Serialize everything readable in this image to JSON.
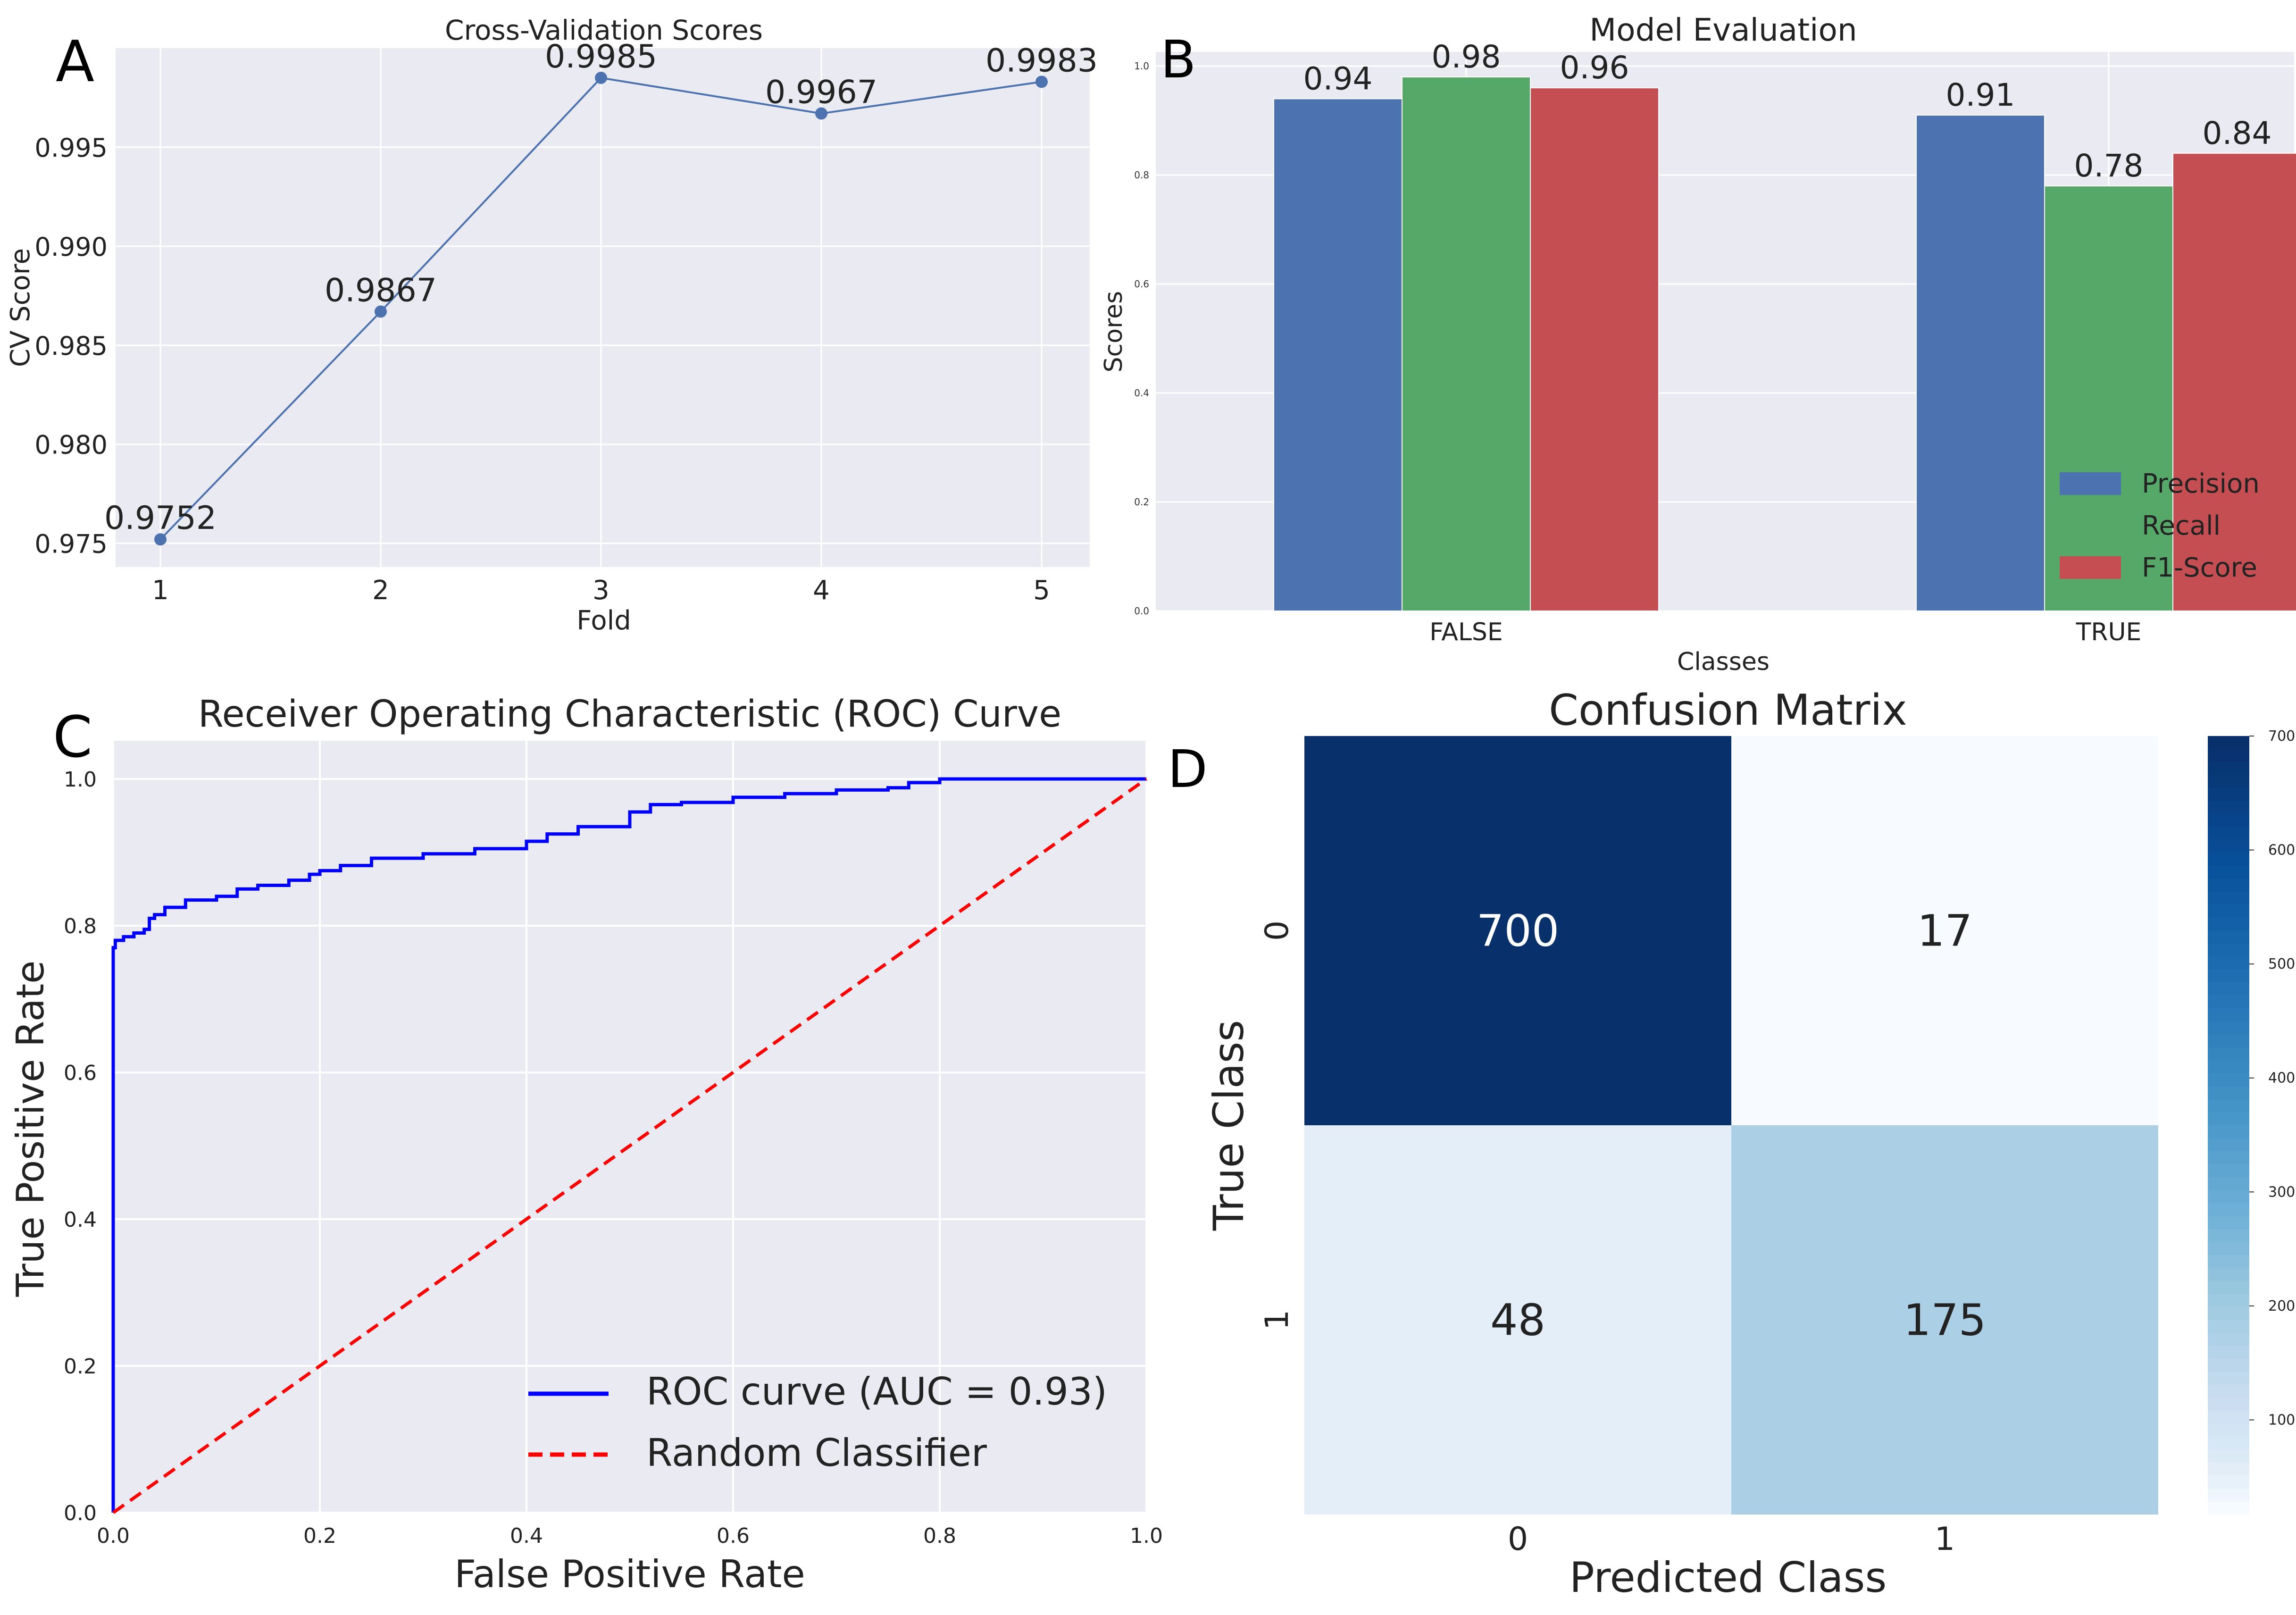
{
  "panels": {
    "a": "A",
    "b": "B",
    "c": "C",
    "d": "D"
  },
  "chart_data": [
    {
      "type": "line",
      "title": "Cross-Validation Scores",
      "xlabel": "Fold",
      "ylabel": "CV Score",
      "x": [
        1,
        2,
        3,
        4,
        5
      ],
      "values": [
        0.9752,
        0.9867,
        0.9985,
        0.9967,
        0.9983
      ],
      "labels": [
        "0.9752",
        "0.9867",
        "0.9985",
        "0.9967",
        "0.9983"
      ],
      "xticks": [
        "1",
        "2",
        "3",
        "4",
        "5"
      ],
      "yticks": [
        "0.975",
        "0.980",
        "0.985",
        "0.990",
        "0.995"
      ],
      "ylim": [
        0.9738,
        1.0
      ],
      "color": "#4c72b0",
      "grid": true
    },
    {
      "type": "bar",
      "title": "Model Evaluation",
      "xlabel": "Classes",
      "ylabel": "Scores",
      "categories": [
        "FALSE",
        "TRUE"
      ],
      "series": [
        {
          "name": "Precision",
          "values": [
            0.94,
            0.91
          ],
          "labels": [
            "0.94",
            "0.91"
          ],
          "color": "#4c72b0"
        },
        {
          "name": "Recall",
          "values": [
            0.98,
            0.78
          ],
          "labels": [
            "0.98",
            "0.78"
          ],
          "color": "#55a868"
        },
        {
          "name": "F1-Score",
          "values": [
            0.96,
            0.84
          ],
          "labels": [
            "0.96",
            "0.84"
          ],
          "color": "#c44e52"
        }
      ],
      "yticks": [
        "0.0",
        "0.2",
        "0.4",
        "0.6",
        "0.8",
        "1.0"
      ],
      "ylim": [
        0,
        1.0
      ],
      "legend": "bottom-right",
      "grid": true
    },
    {
      "type": "line",
      "title": "Receiver Operating Characteristic (ROC) Curve",
      "xlabel": "False Positive Rate",
      "ylabel": "True Positive Rate",
      "xlim": [
        0,
        1
      ],
      "ylim": [
        0,
        1.05
      ],
      "xticks": [
        "0.0",
        "0.2",
        "0.4",
        "0.6",
        "0.8",
        "1.0"
      ],
      "yticks": [
        "0.0",
        "0.2",
        "0.4",
        "0.6",
        "0.8",
        "1.0"
      ],
      "series": [
        {
          "name": "ROC curve (AUC = 0.93)",
          "color": "#0000ff",
          "x": [
            0,
            0,
            0.002,
            0.01,
            0.02,
            0.03,
            0.035,
            0.04,
            0.05,
            0.07,
            0.1,
            0.12,
            0.14,
            0.17,
            0.19,
            0.2,
            0.22,
            0.25,
            0.3,
            0.35,
            0.4,
            0.42,
            0.45,
            0.5,
            0.52,
            0.55,
            0.6,
            0.65,
            0.7,
            0.75,
            0.77,
            0.8,
            1.0
          ],
          "y": [
            0,
            0.77,
            0.78,
            0.785,
            0.79,
            0.795,
            0.81,
            0.815,
            0.825,
            0.835,
            0.84,
            0.85,
            0.855,
            0.862,
            0.87,
            0.875,
            0.882,
            0.892,
            0.898,
            0.905,
            0.915,
            0.925,
            0.935,
            0.955,
            0.965,
            0.968,
            0.975,
            0.98,
            0.985,
            0.988,
            0.995,
            1.0,
            1.0
          ]
        },
        {
          "name": "Random Classifier",
          "color": "#ff0000",
          "dashed": true,
          "x": [
            0,
            1
          ],
          "y": [
            0,
            1
          ]
        }
      ],
      "legend": "bottom-right",
      "grid": true
    },
    {
      "type": "heatmap",
      "title": "Confusion Matrix",
      "xlabel": "Predicted Class",
      "ylabel": "True Class",
      "xticks": [
        "0",
        "1"
      ],
      "yticks": [
        "0",
        "1"
      ],
      "matrix": [
        [
          700,
          17
        ],
        [
          48,
          175
        ]
      ],
      "cell_labels": [
        [
          "700",
          "17"
        ],
        [
          "48",
          "175"
        ]
      ],
      "colorbar_ticks": [
        "100",
        "200",
        "300",
        "400",
        "500",
        "600",
        "700"
      ],
      "vmin": 17,
      "vmax": 700,
      "colormap": "Blues"
    }
  ]
}
